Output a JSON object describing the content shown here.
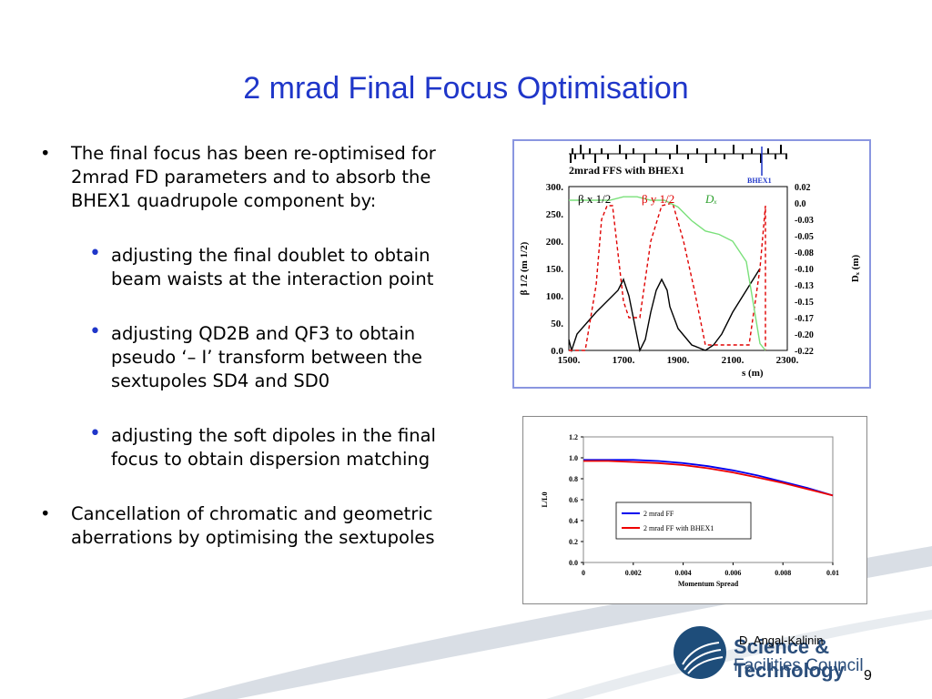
{
  "slide": {
    "title": "2 mrad Final Focus Optimisation",
    "page_number": "9",
    "author": "D. Angal-Kalinin",
    "brand_line1": "Science & Technology",
    "brand_line2": "Facilities Council"
  },
  "bullets": [
    {
      "level": 1,
      "text": "The final focus has been re-optimised for 2mrad FD parameters and to absorb the BHEX1 quadrupole component by:"
    },
    {
      "level": 2,
      "text": "adjusting the final doublet to obtain beam waists at the interaction point"
    },
    {
      "level": 2,
      "text": "adjusting QD2B and QF3 to obtain pseudo ‘– I’ transform between the sextupoles SD4 and SD0"
    },
    {
      "level": 2,
      "text": "adjusting the soft dipoles in the final focus to obtain dispersion matching"
    },
    {
      "level": 1,
      "text": "Cancellation of chromatic and geometric aberrations by optimising the sextupoles"
    }
  ],
  "colors": {
    "title": "#1F36C9",
    "bullet2": "#1F36C9",
    "brand": "#2B4E7B"
  },
  "chart_data": [
    {
      "type": "line",
      "title": "2mrad FFS with BHEX1",
      "annotation": "BHEX1",
      "xlabel": "s (m)",
      "ylabel": "β 1/2 (m 1/2)",
      "ylabel_right": "Dₓ (m)",
      "xlim": [
        1500,
        2300
      ],
      "ylim": [
        0,
        300
      ],
      "ylim_right": [
        -0.22,
        0.02
      ],
      "x_ticks": [
        "1500.",
        "1700.",
        "1900.",
        "2100.",
        "2300."
      ],
      "y_ticks": [
        "0.0",
        "50.",
        "100.",
        "150.",
        "200.",
        "250.",
        "300."
      ],
      "y_right_ticks": [
        "0.02",
        "0.0",
        "-0.03",
        "-0.05",
        "-0.08",
        "-0.10",
        "-0.13",
        "-0.15",
        "-0.17",
        "-0.20",
        "-0.22"
      ],
      "legend": [
        "β x 1/2",
        "β y 1/2",
        "Dₓ"
      ],
      "series": [
        {
          "name": "β x 1/2",
          "color": "#000000",
          "x": [
            1500,
            1510,
            1530,
            1600,
            1620,
            1640,
            1660,
            1680,
            1700,
            1720,
            1760,
            1780,
            1800,
            1820,
            1840,
            1860,
            1870,
            1900,
            1950,
            2000,
            2030,
            2060,
            2100,
            2200
          ],
          "y": [
            20,
            0,
            30,
            70,
            80,
            90,
            100,
            110,
            130,
            100,
            0,
            20,
            70,
            110,
            130,
            110,
            80,
            40,
            10,
            0,
            10,
            30,
            70,
            150
          ]
        },
        {
          "name": "β y 1/2",
          "color": "#E00000",
          "x": [
            1500,
            1560,
            1600,
            1620,
            1640,
            1660,
            1700,
            1720,
            1760,
            1800,
            1840,
            1880,
            1920,
            1960,
            2000,
            2100,
            2160,
            2200,
            2220,
            2220
          ],
          "y": [
            0,
            0,
            120,
            240,
            265,
            265,
            90,
            60,
            60,
            200,
            265,
            270,
            200,
            110,
            10,
            10,
            10,
            150,
            265,
            0
          ]
        },
        {
          "name": "Dₓ",
          "color": "#7AE07A",
          "x": [
            1500,
            1600,
            1650,
            1700,
            1750,
            1800,
            1850,
            1900,
            1950,
            2000,
            2050,
            2100,
            2150,
            2200,
            2220
          ],
          "y": [
            0.0,
            0.0,
            0.0,
            0.005,
            0.005,
            0.0,
            0.0,
            -0.01,
            -0.03,
            -0.045,
            -0.05,
            -0.06,
            -0.09,
            -0.21,
            -0.22
          ]
        }
      ]
    },
    {
      "type": "line",
      "title": "",
      "xlabel": "Momentum Spread",
      "ylabel": "L/L0",
      "xlim": [
        0,
        0.01
      ],
      "ylim": [
        0,
        1.2
      ],
      "x_ticks": [
        "0",
        "0.002",
        "0.004",
        "0.006",
        "0.008",
        "0.01"
      ],
      "y_ticks": [
        "0.0",
        "0.2",
        "0.4",
        "0.6",
        "0.8",
        "1.0",
        "1.2"
      ],
      "legend_position": "bottom-left",
      "series": [
        {
          "name": "2 mrad FF",
          "color": "#0000EE",
          "x": [
            0,
            0.001,
            0.002,
            0.003,
            0.004,
            0.005,
            0.006,
            0.007,
            0.008,
            0.009,
            0.01
          ],
          "y": [
            0.98,
            0.98,
            0.98,
            0.97,
            0.95,
            0.92,
            0.88,
            0.83,
            0.77,
            0.71,
            0.64
          ]
        },
        {
          "name": "2 mrad FF with BHEX1",
          "color": "#EE0000",
          "x": [
            0,
            0.001,
            0.002,
            0.003,
            0.004,
            0.005,
            0.006,
            0.007,
            0.008,
            0.009,
            0.01
          ],
          "y": [
            0.97,
            0.97,
            0.96,
            0.95,
            0.93,
            0.9,
            0.86,
            0.81,
            0.76,
            0.7,
            0.64
          ]
        }
      ]
    }
  ]
}
